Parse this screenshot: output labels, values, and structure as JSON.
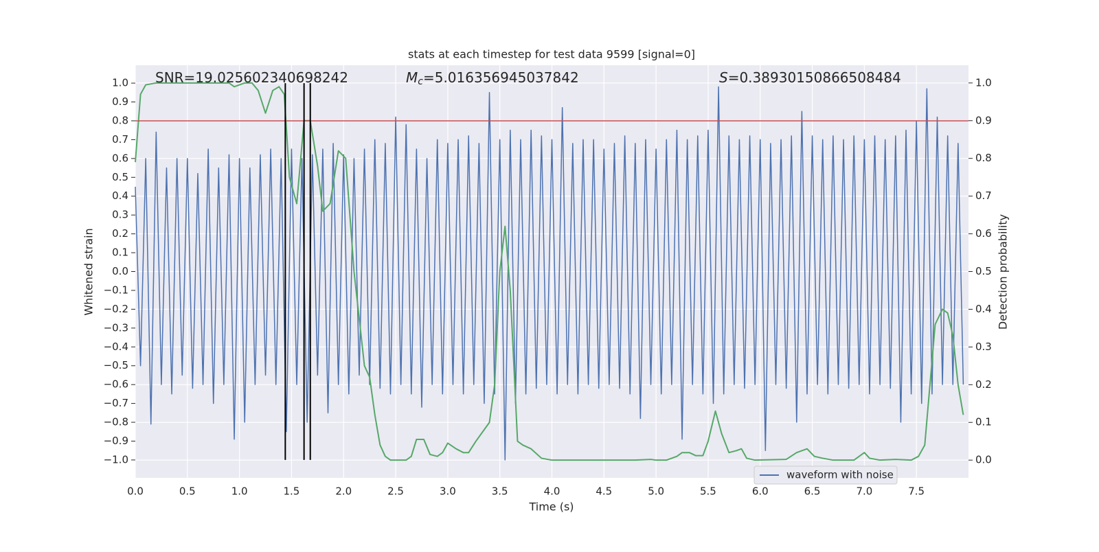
{
  "chart_data": {
    "type": "line",
    "title": "stats at each timestep for test data 9599 [signal=0]",
    "xlabel": "Time (s)",
    "ylabel": "Whitened strain",
    "y2label": "Detection probability",
    "annotations": [
      {
        "text": "SNR=19.025602340698242"
      },
      {
        "symbol": "M",
        "subscript": "c",
        "text": "=5.016356945037842"
      },
      {
        "symbol": "S",
        "text": "=0.38930150866508484"
      }
    ],
    "xlim": [
      0,
      8
    ],
    "ylim": [
      -1.095,
      1.095
    ],
    "y2lim": [
      -0.047,
      1.047
    ],
    "xticks": [
      {
        "value": 0,
        "label": "0.0"
      },
      0.5,
      {
        "value": 1,
        "label": "1.0"
      },
      1.5,
      {
        "value": 2,
        "label": "2.0"
      },
      2.5,
      {
        "value": 3,
        "label": "3.0"
      },
      3.5,
      {
        "value": 4,
        "label": "4.0"
      },
      4.5,
      {
        "value": 5,
        "label": "5.0"
      },
      5.5,
      {
        "value": 6,
        "label": "6.0"
      },
      6.5,
      {
        "value": 7,
        "label": "7.0"
      },
      7.5
    ],
    "yticks": [
      {
        "value": -1,
        "label": "−1.0"
      },
      {
        "value": -0.9,
        "label": "−0.9"
      },
      {
        "value": -0.8,
        "label": "−0.8"
      },
      {
        "value": -0.7,
        "label": "−0.7"
      },
      {
        "value": -0.6,
        "label": "−0.6"
      },
      {
        "value": -0.5,
        "label": "−0.5"
      },
      {
        "value": -0.4,
        "label": "−0.4"
      },
      {
        "value": -0.3,
        "label": "−0.3"
      },
      {
        "value": -0.2,
        "label": "−0.2"
      },
      {
        "value": -0.1,
        "label": "−0.1"
      },
      {
        "value": 0,
        "label": "0.0"
      },
      0.1,
      0.2,
      0.3,
      0.4,
      0.5,
      0.6,
      0.7,
      0.8,
      0.9,
      {
        "value": 1,
        "label": "1.0"
      }
    ],
    "y2ticks": [
      {
        "value": 0,
        "label": "0.0"
      },
      0.1,
      0.2,
      0.3,
      0.4,
      0.5,
      0.6,
      0.7,
      0.8,
      0.9,
      {
        "value": 1,
        "label": "1.0"
      }
    ],
    "grid": true,
    "legend": "lower right",
    "hlines": [
      {
        "value": 0.8,
        "color": "#c44e52"
      }
    ],
    "vlines": [
      {
        "value": 1.44,
        "color": "#000000"
      },
      {
        "value": 1.62,
        "color": "#000000"
      },
      {
        "value": 1.68,
        "color": "#000000"
      }
    ],
    "vline_range": [
      -1,
      1
    ],
    "series": [
      {
        "name": "waveform with noise",
        "color": "#4c72b0",
        "axis": "y",
        "x": [
          0,
          0.05,
          0.1,
          0.15,
          0.2,
          0.25,
          0.3,
          0.35,
          0.4,
          0.45,
          0.5,
          0.55,
          0.6,
          0.65,
          0.7,
          0.75,
          0.8,
          0.85,
          0.9,
          0.95,
          1,
          1.05,
          1.1,
          1.15,
          1.2,
          1.25,
          1.3,
          1.35,
          1.4,
          1.45,
          1.5,
          1.55,
          1.6,
          1.65,
          1.7,
          1.75,
          1.8,
          1.85,
          1.9,
          1.95,
          2,
          2.05,
          2.1,
          2.15,
          2.2,
          2.25,
          2.3,
          2.35,
          2.4,
          2.45,
          2.5,
          2.55,
          2.6,
          2.65,
          2.7,
          2.75,
          2.8,
          2.85,
          2.9,
          2.95,
          3,
          3.05,
          3.1,
          3.15,
          3.2,
          3.25,
          3.3,
          3.35,
          3.4,
          3.45,
          3.5,
          3.55,
          3.6,
          3.65,
          3.7,
          3.75,
          3.8,
          3.85,
          3.9,
          3.95,
          4,
          4.05,
          4.1,
          4.15,
          4.2,
          4.25,
          4.3,
          4.35,
          4.4,
          4.45,
          4.5,
          4.55,
          4.6,
          4.65,
          4.7,
          4.75,
          4.8,
          4.85,
          4.9,
          4.95,
          5,
          5.05,
          5.1,
          5.15,
          5.2,
          5.25,
          5.3,
          5.35,
          5.4,
          5.45,
          5.5,
          5.55,
          5.6,
          5.65,
          5.7,
          5.75,
          5.8,
          5.85,
          5.9,
          5.95,
          6,
          6.05,
          6.1,
          6.15,
          6.2,
          6.25,
          6.3,
          6.35,
          6.4,
          6.45,
          6.5,
          6.55,
          6.6,
          6.65,
          6.7,
          6.75,
          6.8,
          6.85,
          6.9,
          6.95,
          7,
          7.05,
          7.1,
          7.15,
          7.2,
          7.25,
          7.3,
          7.35,
          7.4,
          7.45,
          7.5,
          7.55,
          7.6,
          7.65,
          7.7,
          7.75,
          7.8,
          7.85,
          7.9,
          7.95
        ],
        "values": [
          0.45,
          -0.5,
          0.6,
          -0.81,
          0.74,
          -0.6,
          0.55,
          -0.65,
          0.6,
          -0.55,
          0.6,
          -0.62,
          0.52,
          -0.6,
          0.65,
          -0.7,
          0.55,
          -0.6,
          0.62,
          -0.89,
          0.6,
          -0.8,
          0.55,
          -0.6,
          0.62,
          -0.55,
          0.65,
          -0.6,
          0.6,
          -0.85,
          0.65,
          -0.6,
          0.6,
          -0.8,
          0.62,
          -0.55,
          0.65,
          -0.75,
          0.68,
          -0.6,
          0.62,
          -0.65,
          0.6,
          -0.55,
          0.65,
          -0.6,
          0.7,
          -0.62,
          0.68,
          -0.65,
          0.82,
          -0.6,
          0.78,
          -0.65,
          0.65,
          -0.72,
          0.6,
          -0.6,
          0.7,
          -0.65,
          0.68,
          -0.6,
          0.7,
          -0.65,
          0.72,
          -0.6,
          0.68,
          -0.7,
          0.95,
          -0.65,
          0.7,
          -1.0,
          0.75,
          -0.7,
          0.7,
          -0.65,
          0.75,
          -0.62,
          0.72,
          -0.6,
          0.7,
          -0.65,
          0.87,
          -0.6,
          0.68,
          -0.65,
          0.7,
          -0.6,
          0.7,
          -0.62,
          0.65,
          -0.6,
          0.68,
          -0.62,
          0.72,
          -0.65,
          0.68,
          -0.78,
          0.7,
          -0.6,
          0.65,
          -0.65,
          0.7,
          -0.6,
          0.75,
          -0.89,
          0.7,
          -0.6,
          0.72,
          -0.65,
          0.75,
          -0.7,
          0.98,
          -0.65,
          0.72,
          -0.6,
          0.7,
          -0.62,
          0.72,
          -0.6,
          0.7,
          -0.95,
          0.68,
          -0.6,
          0.7,
          -0.62,
          0.72,
          -0.8,
          0.85,
          -0.65,
          0.72,
          -0.6,
          0.7,
          -0.65,
          0.72,
          -0.6,
          0.7,
          -0.62,
          0.72,
          -0.6,
          0.7,
          -0.65,
          0.72,
          -0.6,
          0.7,
          -0.62,
          0.72,
          -0.8,
          0.75,
          -0.65,
          0.8,
          -0.7,
          0.97,
          -0.65,
          0.82,
          -0.6,
          0.72,
          -0.6,
          0.68,
          -0.6
        ]
      },
      {
        "color": "#55a868",
        "axis": "y2",
        "x": [
          0,
          0.05,
          0.1,
          0.2,
          0.9,
          0.95,
          1.05,
          1.12,
          1.18,
          1.25,
          1.32,
          1.38,
          1.43,
          1.48,
          1.55,
          1.62,
          1.68,
          1.75,
          1.8,
          1.87,
          1.95,
          2.02,
          2.1,
          2.2,
          2.25,
          2.3,
          2.35,
          2.4,
          2.45,
          2.5,
          2.6,
          2.65,
          2.7,
          2.77,
          2.83,
          2.9,
          2.95,
          3,
          3.08,
          3.15,
          3.2,
          3.27,
          3.4,
          3.45,
          3.5,
          3.55,
          3.6,
          3.67,
          3.72,
          3.8,
          3.9,
          4,
          4.5,
          4.8,
          4.95,
          5,
          5.1,
          5.2,
          5.25,
          5.32,
          5.38,
          5.45,
          5.5,
          5.57,
          5.63,
          5.7,
          5.77,
          5.82,
          5.87,
          5.95,
          6.25,
          6.35,
          6.45,
          6.52,
          6.6,
          6.7,
          6.9,
          6.95,
          7,
          7.05,
          7.15,
          7.3,
          7.45,
          7.52,
          7.58,
          7.63,
          7.68,
          7.75,
          7.8,
          7.85,
          7.9,
          7.95
        ],
        "values": [
          0.79,
          0.97,
          0.995,
          1,
          1,
          0.99,
          1,
          1,
          0.98,
          0.92,
          0.98,
          0.99,
          0.97,
          0.75,
          0.68,
          0.9,
          0.9,
          0.78,
          0.66,
          0.68,
          0.82,
          0.8,
          0.5,
          0.25,
          0.22,
          0.12,
          0.04,
          0.01,
          0,
          0,
          0,
          0.01,
          0.055,
          0.055,
          0.015,
          0.01,
          0.02,
          0.045,
          0.03,
          0.02,
          0.02,
          0.05,
          0.1,
          0.2,
          0.5,
          0.62,
          0.45,
          0.05,
          0.04,
          0.03,
          0.005,
          0,
          0,
          0,
          0.002,
          0,
          0,
          0.01,
          0.02,
          0.02,
          0.012,
          0.012,
          0.05,
          0.13,
          0.07,
          0.02,
          0.025,
          0.03,
          0.005,
          0,
          0.002,
          0.02,
          0.03,
          0.01,
          0.005,
          0,
          0,
          0.01,
          0.02,
          0.005,
          0,
          0.002,
          0,
          0.01,
          0.04,
          0.2,
          0.36,
          0.4,
          0.39,
          0.33,
          0.2,
          0.12
        ]
      }
    ]
  }
}
